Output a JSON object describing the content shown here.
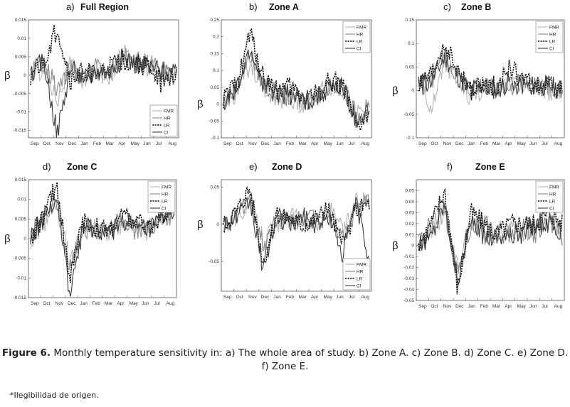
{
  "months": [
    "Sep",
    "Oct",
    "Nov",
    "Dec",
    "Jan",
    "Feb",
    "Mar",
    "Apr",
    "May",
    "Jun",
    "Jul",
    "Aug"
  ],
  "beta_label": "β",
  "legend_labels": [
    "FMR",
    "HR",
    "LR",
    "CI"
  ],
  "series_colors": {
    "FMR": "#b5b5b5",
    "HR": "#8a8a8a",
    "LR": "#111111",
    "CI": "#3a3a3a"
  },
  "caption": {
    "label": "Figure 6.",
    "text": " Monthly temperature sensitivity in: a) The whole area of study. b) Zone A. c) Zone B. d) Zone C. e) Zone D. f) Zone E."
  },
  "note": "*Ilegibilidad de origen.",
  "chart_data": [
    {
      "type": "line",
      "panel_label": "a)",
      "title": "Full Region",
      "x": [
        "Sep",
        "Oct",
        "Nov",
        "Dec",
        "Jan",
        "Feb",
        "Mar",
        "Apr",
        "May",
        "Jun",
        "Jul",
        "Aug"
      ],
      "ylim": [
        -0.017,
        0.015
      ],
      "yticks": [
        "0.015",
        "0.01",
        "0.005",
        "0",
        "-0.005",
        "-0.01",
        "-0.015"
      ],
      "ytick_values": [
        0.015,
        0.01,
        0.005,
        0,
        -0.005,
        -0.01,
        -0.015
      ],
      "legend_position": "bottom-right",
      "series": [
        {
          "name": "FMR",
          "values": [
            0.0,
            0.002,
            -0.006,
            0.003,
            -0.002,
            0.001,
            0.0,
            0.006,
            0.003,
            0.002,
            0.001,
            -0.001
          ]
        },
        {
          "name": "HR",
          "values": [
            0.001,
            0.004,
            -0.004,
            0.002,
            -0.001,
            0.002,
            0.001,
            0.005,
            0.004,
            0.003,
            0.002,
            0.0
          ]
        },
        {
          "name": "LR",
          "values": [
            0.0,
            0.003,
            0.013,
            -0.002,
            0.001,
            0.0,
            0.002,
            0.004,
            0.003,
            0.002,
            -0.003,
            0.001
          ]
        },
        {
          "name": "CI",
          "values": [
            0.0,
            0.004,
            -0.016,
            0.002,
            -0.001,
            0.001,
            0.001,
            0.005,
            0.003,
            0.002,
            0.001,
            0.0
          ]
        }
      ]
    },
    {
      "type": "line",
      "panel_label": "b)",
      "title": "Zone A",
      "x": [
        "Sep",
        "Oct",
        "Nov",
        "Dec",
        "Jan",
        "Feb",
        "Mar",
        "Apr",
        "May",
        "Jun",
        "Jul",
        "Aug"
      ],
      "ylim": [
        -0.1,
        0.25
      ],
      "yticks": [
        "0.25",
        "0.2",
        "0.15",
        "0.1",
        "0.05",
        "0",
        "-0.05",
        "-0.1"
      ],
      "ytick_values": [
        0.25,
        0.2,
        0.15,
        0.1,
        0.05,
        0,
        -0.05,
        -0.1
      ],
      "legend_position": "top-right",
      "series": [
        {
          "name": "FMR",
          "values": [
            0.01,
            0.03,
            0.12,
            0.05,
            0.02,
            0.01,
            0.0,
            0.03,
            0.05,
            0.04,
            -0.03,
            -0.02
          ]
        },
        {
          "name": "HR",
          "values": [
            0.0,
            0.05,
            0.15,
            0.06,
            0.03,
            0.02,
            0.01,
            0.02,
            0.06,
            0.05,
            -0.04,
            -0.01
          ]
        },
        {
          "name": "LR",
          "values": [
            0.01,
            0.06,
            0.21,
            0.08,
            0.04,
            0.05,
            0.02,
            0.03,
            0.07,
            0.06,
            -0.08,
            -0.03
          ]
        },
        {
          "name": "CI",
          "values": [
            0.0,
            0.04,
            0.16,
            0.06,
            0.03,
            0.03,
            0.01,
            0.02,
            0.05,
            0.05,
            -0.05,
            -0.02
          ]
        }
      ]
    },
    {
      "type": "line",
      "panel_label": "c)",
      "title": "Zone B",
      "x": [
        "Sep",
        "Oct",
        "Nov",
        "Dec",
        "Jan",
        "Feb",
        "Mar",
        "Apr",
        "May",
        "Jun",
        "Jul",
        "Aug"
      ],
      "ylim": [
        -0.1,
        0.15
      ],
      "yticks": [
        "0.15",
        "0.1",
        "0.05",
        "0",
        "-0.05",
        "-0.1"
      ],
      "ytick_values": [
        0.15,
        0.1,
        0.05,
        0,
        -0.05,
        -0.1
      ],
      "legend_position": "top-right",
      "series": [
        {
          "name": "FMR",
          "values": [
            0.01,
            -0.03,
            0.06,
            0.02,
            -0.01,
            0.0,
            0.01,
            0.02,
            0.01,
            0.01,
            0.0,
            0.0
          ]
        },
        {
          "name": "HR",
          "values": [
            0.02,
            0.02,
            0.08,
            0.03,
            0.0,
            0.01,
            0.0,
            0.01,
            0.02,
            0.01,
            0.01,
            0.0
          ]
        },
        {
          "name": "LR",
          "values": [
            0.01,
            0.03,
            0.1,
            0.04,
            0.0,
            0.01,
            0.01,
            0.05,
            0.02,
            0.01,
            0.01,
            0.0
          ]
        },
        {
          "name": "CI",
          "values": [
            0.01,
            0.02,
            0.07,
            0.03,
            0.0,
            0.01,
            0.0,
            0.02,
            0.01,
            0.01,
            0.01,
            0.0
          ]
        }
      ]
    },
    {
      "type": "line",
      "panel_label": "d)",
      "title": "Zone C",
      "x": [
        "Sep",
        "Oct",
        "Nov",
        "Dec",
        "Jan",
        "Feb",
        "Mar",
        "Apr",
        "May",
        "Jun",
        "Jul",
        "Aug"
      ],
      "ylim": [
        -0.015,
        0.015
      ],
      "yticks": [
        "0.015",
        "0.01",
        "0.005",
        "0",
        "-0.005",
        "-0.01",
        "-0.015"
      ],
      "ytick_values": [
        0.015,
        0.01,
        0.005,
        0,
        -0.005,
        -0.01,
        -0.015
      ],
      "legend_position": "top-right",
      "series": [
        {
          "name": "FMR",
          "values": [
            0.0,
            0.004,
            0.008,
            -0.006,
            0.002,
            0.003,
            0.001,
            0.004,
            0.003,
            0.002,
            0.005,
            0.009
          ]
        },
        {
          "name": "HR",
          "values": [
            0.001,
            0.005,
            0.01,
            -0.008,
            0.003,
            0.002,
            0.002,
            0.005,
            0.002,
            0.003,
            0.004,
            0.007
          ]
        },
        {
          "name": "LR",
          "values": [
            0.0,
            0.006,
            0.014,
            -0.01,
            0.004,
            0.003,
            0.002,
            0.006,
            0.004,
            0.003,
            0.006,
            0.009
          ]
        },
        {
          "name": "CI",
          "values": [
            0.001,
            0.005,
            0.011,
            -0.015,
            0.003,
            0.002,
            0.001,
            0.005,
            0.003,
            0.002,
            0.005,
            0.008
          ]
        }
      ]
    },
    {
      "type": "line",
      "panel_label": "e)",
      "title": "Zone D",
      "x": [
        "Sep",
        "Oct",
        "Nov",
        "Dec",
        "Jan",
        "Feb",
        "Mar",
        "Apr",
        "May",
        "Jun",
        "Jul",
        "Aug"
      ],
      "ylim": [
        -0.09,
        0.06
      ],
      "yticks": [
        "0.05",
        "0",
        "-0.05"
      ],
      "ytick_values": [
        0.05,
        0,
        -0.05
      ],
      "legend_position": "bottom-right",
      "series": [
        {
          "name": "FMR",
          "values": [
            0.0,
            0.01,
            0.03,
            -0.02,
            0.0,
            0.01,
            0.01,
            0.0,
            0.02,
            -0.01,
            0.03,
            0.04
          ]
        },
        {
          "name": "HR",
          "values": [
            0.0,
            0.01,
            0.04,
            -0.03,
            0.01,
            0.0,
            0.01,
            0.01,
            0.01,
            -0.02,
            0.02,
            0.03
          ]
        },
        {
          "name": "LR",
          "values": [
            0.0,
            0.02,
            0.05,
            -0.05,
            0.01,
            0.01,
            0.0,
            0.01,
            0.02,
            -0.03,
            0.02,
            0.03
          ]
        },
        {
          "name": "CI",
          "values": [
            0.0,
            0.01,
            0.03,
            -0.06,
            0.01,
            0.0,
            0.01,
            0.0,
            0.01,
            -0.04,
            0.03,
            -0.05
          ]
        }
      ]
    },
    {
      "type": "line",
      "panel_label": "f)",
      "title": "Zone E",
      "x": [
        "Sep",
        "Oct",
        "Nov",
        "Dec",
        "Jan",
        "Feb",
        "Mar",
        "Apr",
        "May",
        "Jun",
        "Jul",
        "Aug"
      ],
      "ylim": [
        -0.05,
        0.06
      ],
      "yticks": [
        "0.05",
        "0.04",
        "0.03",
        "0.02",
        "0.01",
        "0",
        "-0.01",
        "-0.02",
        "-0.03",
        "-0.04",
        "-0.05"
      ],
      "ytick_values": [
        0.05,
        0.04,
        0.03,
        0.02,
        0.01,
        0,
        -0.01,
        -0.02,
        -0.03,
        -0.04,
        -0.05
      ],
      "legend_position": "top-right",
      "series": [
        {
          "name": "FMR",
          "values": [
            0.0,
            0.01,
            0.03,
            -0.02,
            0.02,
            0.01,
            0.01,
            0.02,
            0.01,
            0.02,
            0.03,
            0.01
          ]
        },
        {
          "name": "HR",
          "values": [
            0.0,
            0.02,
            0.04,
            -0.03,
            0.02,
            0.02,
            0.01,
            0.01,
            0.02,
            0.01,
            0.02,
            0.01
          ]
        },
        {
          "name": "LR",
          "values": [
            0.0,
            0.02,
            0.05,
            -0.04,
            0.03,
            0.02,
            0.01,
            0.02,
            0.02,
            0.02,
            0.03,
            0.02
          ]
        },
        {
          "name": "CI",
          "values": [
            0.0,
            0.01,
            0.04,
            -0.03,
            0.02,
            0.01,
            0.01,
            0.01,
            0.01,
            0.02,
            0.02,
            0.01
          ]
        }
      ]
    }
  ]
}
